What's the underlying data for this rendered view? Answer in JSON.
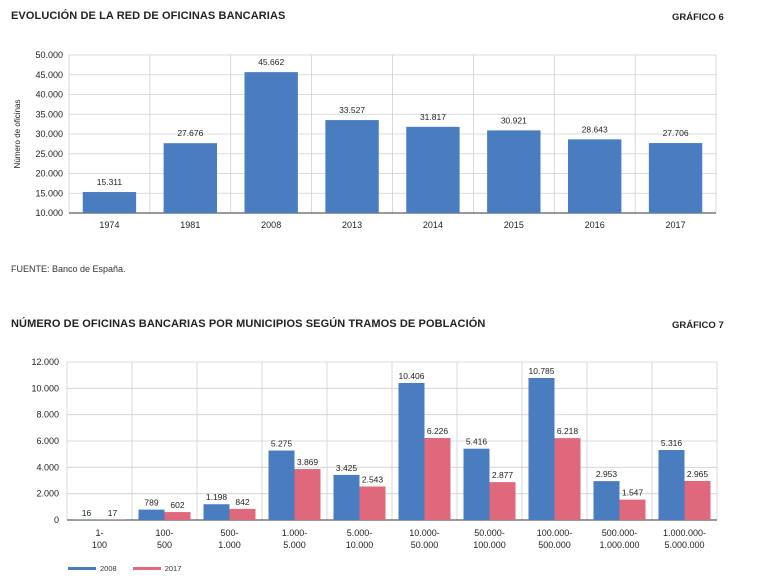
{
  "chart1": {
    "title": "EVOLUCIÓN DE LA RED DE OFICINAS BANCARIAS",
    "number": "GRÁFICO 6",
    "source": "FUENTE: Banco de España.",
    "chart_data": {
      "type": "bar",
      "categories": [
        "1974",
        "1981",
        "2008",
        "2013",
        "2014",
        "2015",
        "2016",
        "2017"
      ],
      "values": [
        15311,
        27676,
        45662,
        33527,
        31817,
        30921,
        28643,
        27706
      ],
      "value_labels": [
        "15.311",
        "27.676",
        "45.662",
        "33.527",
        "31.817",
        "30.921",
        "28.643",
        "27.706"
      ],
      "ylabel": "Número de oficinas",
      "ylim": [
        10000,
        50000
      ],
      "yticks": [
        "10.000",
        "15.000",
        "20.000",
        "25.000",
        "30.000",
        "35.000",
        "40.000",
        "45.000",
        "50.000"
      ],
      "color": "#4a7dbf",
      "grid": true
    }
  },
  "chart2": {
    "title": "NÚMERO DE OFICINAS BANCARIAS POR MUNICIPIOS SEGÚN TRAMOS DE POBLACIÓN",
    "number": "GRÁFICO 7",
    "chart_data": {
      "type": "bar",
      "categories": [
        [
          "1-",
          "100"
        ],
        [
          "100-",
          "500"
        ],
        [
          "500-",
          "1.000"
        ],
        [
          "1.000-",
          "5.000"
        ],
        [
          "5.000-",
          "10.000"
        ],
        [
          "10.000-",
          "50.000"
        ],
        [
          "50.000-",
          "100.000"
        ],
        [
          "100.000-",
          "500.000"
        ],
        [
          "500.000-",
          "1.000.000"
        ],
        [
          "1.000.000-",
          "5.000.000"
        ]
      ],
      "series": [
        {
          "name": "2008",
          "color": "#4a7dbf",
          "values": [
            16,
            789,
            1198,
            5275,
            3425,
            10406,
            5416,
            10785,
            2953,
            5316
          ],
          "labels": [
            "16",
            "789",
            "1.198",
            "5.275",
            "3.425",
            "10.406",
            "5.416",
            "10.785",
            "2.953",
            "5.316"
          ]
        },
        {
          "name": "2017",
          "color": "#e0687c",
          "values": [
            17,
            602,
            842,
            3869,
            2543,
            6226,
            2877,
            6218,
            1547,
            2965
          ],
          "labels": [
            "17",
            "602",
            "842",
            "3.869",
            "2.543",
            "6.226",
            "2.877",
            "6.218",
            "1.547",
            "2.965"
          ]
        }
      ],
      "ylim": [
        0,
        12000
      ],
      "yticks": [
        "0",
        "2.000",
        "4.000",
        "6.000",
        "8.000",
        "10.000",
        "12.000"
      ],
      "legend": "bottom-left",
      "grid": true
    }
  }
}
